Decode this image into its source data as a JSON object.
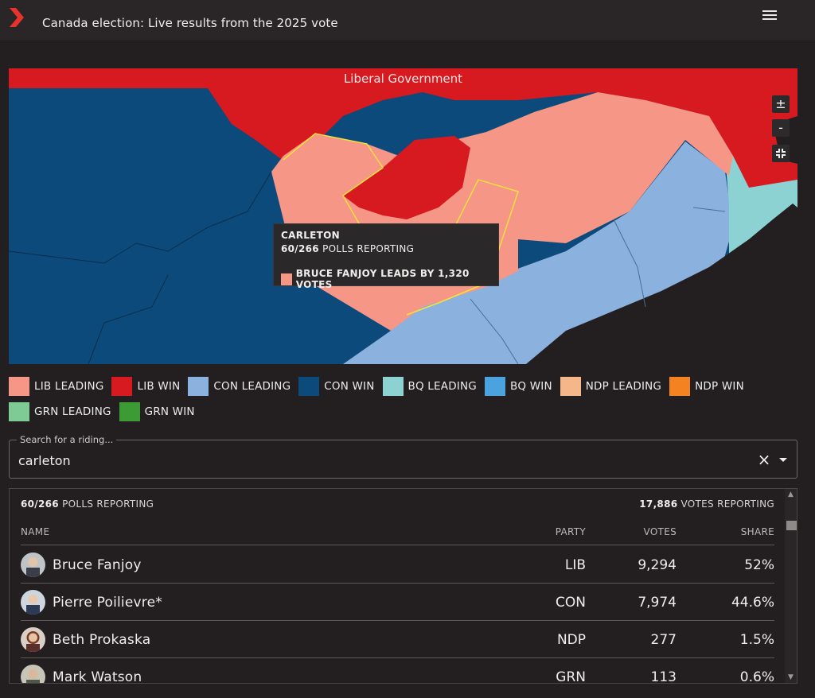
{
  "header": {
    "title": "Canada election: Live results from the 2025 vote"
  },
  "map": {
    "banner": "Liberal Government",
    "zoom_in": "±",
    "zoom_out": "-",
    "fit": "⛶",
    "tooltip": {
      "riding": "CARLETON",
      "polls_count": "60/266",
      "polls_label": "POLLS REPORTING",
      "lead_text": "BRUCE FANJOY LEADS BY 1,320 VOTES",
      "lead_color": "#f69687"
    }
  },
  "legend": [
    {
      "label": "LIB LEADING",
      "color": "#f69687"
    },
    {
      "label": "LIB WIN",
      "color": "#d71920"
    },
    {
      "label": "CON LEADING",
      "color": "#8bb1df"
    },
    {
      "label": "CON WIN",
      "color": "#0c4a7b"
    },
    {
      "label": "BQ LEADING",
      "color": "#8dd2d3"
    },
    {
      "label": "BQ WIN",
      "color": "#4aa3de"
    },
    {
      "label": "NDP LEADING",
      "color": "#f5b78a"
    },
    {
      "label": "NDP WIN",
      "color": "#f58220"
    },
    {
      "label": "GRN LEADING",
      "color": "#7fcb95"
    },
    {
      "label": "GRN WIN",
      "color": "#3d9b35"
    }
  ],
  "search": {
    "label": "Search for a riding...",
    "value": "carleton"
  },
  "results": {
    "polls_count": "60/266",
    "polls_label": "POLLS REPORTING",
    "votes_count": "17,886",
    "votes_label": "VOTES REPORTING",
    "columns": {
      "name": "NAME",
      "party": "PARTY",
      "votes": "VOTES",
      "share": "SHARE"
    },
    "rows": [
      {
        "name": "Bruce Fanjoy",
        "party": "LIB",
        "votes": "9,294",
        "share": "52%"
      },
      {
        "name": "Pierre Poilievre*",
        "party": "CON",
        "votes": "7,974",
        "share": "44.6%"
      },
      {
        "name": "Beth Prokaska",
        "party": "NDP",
        "votes": "277",
        "share": "1.5%"
      },
      {
        "name": "Mark Watson",
        "party": "GRN",
        "votes": "113",
        "share": "0.6%"
      }
    ]
  }
}
